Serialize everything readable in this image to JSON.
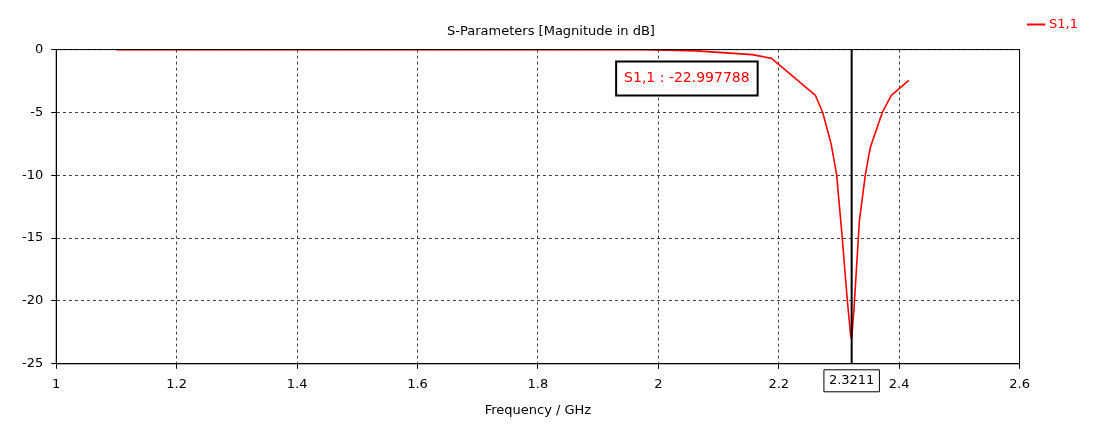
{
  "chart_data": {
    "type": "line",
    "title": "S-Parameters [Magnitude in dB]",
    "xlabel": "Frequency / GHz",
    "x": [
      1.1,
      1.3,
      1.5,
      1.7,
      1.871,
      1.976,
      2.063,
      2.156,
      2.188,
      2.261,
      2.273,
      2.287,
      2.296,
      2.305,
      2.314,
      2.3196,
      2.3211,
      2.325,
      2.334,
      2.344,
      2.352,
      2.372,
      2.387,
      2.416
    ],
    "series": [
      {
        "name": "S1,1",
        "color": "#ff0000",
        "values": [
          0,
          0,
          0,
          0,
          0,
          0,
          -0.1,
          -0.4,
          -0.7,
          -3.65,
          -5.0,
          -7.5,
          -9.9,
          -14.7,
          -20.0,
          -22.8,
          -22.997788,
          -20.6,
          -13.6,
          -9.9,
          -7.8,
          -5.0,
          -3.65,
          -2.45
        ]
      }
    ],
    "xlim": [
      1,
      2.6
    ],
    "xticks": [
      1,
      1.2,
      1.4,
      1.6,
      1.8,
      2,
      2.2,
      2.4,
      2.6
    ],
    "ylim": [
      -25,
      0
    ],
    "yticks": [
      -25,
      -20,
      -15,
      -10,
      -5,
      0
    ],
    "ref_lines": [
      {
        "axis": "x",
        "value": 2.3211,
        "label": "2.3211",
        "color": "#000000"
      }
    ],
    "annotations": [
      "S1,1 : -22.997788"
    ],
    "grid": true,
    "legend": "top right",
    "marker": "none",
    "line_style": "solid"
  }
}
